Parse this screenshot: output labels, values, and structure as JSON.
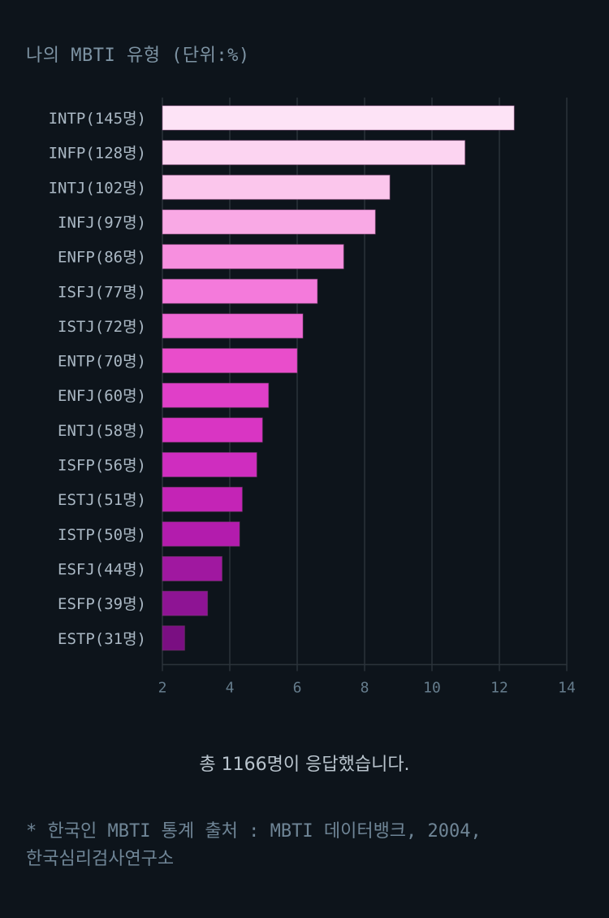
{
  "title": "나의 MBTI 유형 (단위:%)",
  "total_text": "총 1166명이 응답했습니다.",
  "source_line1": "* 한국인 MBTI 통계 출처 : MBTI 데이터뱅크, 2004,",
  "source_line2": "한국심리검사연구소",
  "chart_data": {
    "type": "bar",
    "orientation": "horizontal",
    "title": "나의 MBTI 유형 (단위:%)",
    "xlabel": "",
    "ylabel": "",
    "xlim": [
      2,
      14
    ],
    "xticks": [
      2,
      4,
      6,
      8,
      10,
      12,
      14
    ],
    "grid": true,
    "categories": [
      "INTP(145명)",
      "INFP(128명)",
      "INTJ(102명)",
      "INFJ(97명)",
      "ENFP(86명)",
      "ISFJ(77명)",
      "ISTJ(72명)",
      "ENTP(70명)",
      "ENFJ(60명)",
      "ENTJ(58명)",
      "ISFP(56명)",
      "ESTJ(51명)",
      "ISTP(50명)",
      "ESFJ(44명)",
      "ESFP(39명)",
      "ESTP(31명)"
    ],
    "counts": [
      145,
      128,
      102,
      97,
      86,
      77,
      72,
      70,
      60,
      58,
      56,
      51,
      50,
      44,
      39,
      31
    ],
    "values": [
      12.44,
      10.98,
      8.75,
      8.32,
      7.38,
      6.6,
      6.17,
      6.0,
      5.15,
      4.97,
      4.8,
      4.37,
      4.29,
      3.77,
      3.34,
      2.66
    ],
    "colors": [
      "#fde3f6",
      "#fcd4f1",
      "#fbc6ec",
      "#f9a9e5",
      "#f78fdf",
      "#f47adb",
      "#ef68d4",
      "#e94dcb",
      "#e03fc8",
      "#d935c3",
      "#cf2dbf",
      "#c424b6",
      "#b31cad",
      "#a018a0",
      "#8e1494",
      "#7a0f82"
    ]
  }
}
